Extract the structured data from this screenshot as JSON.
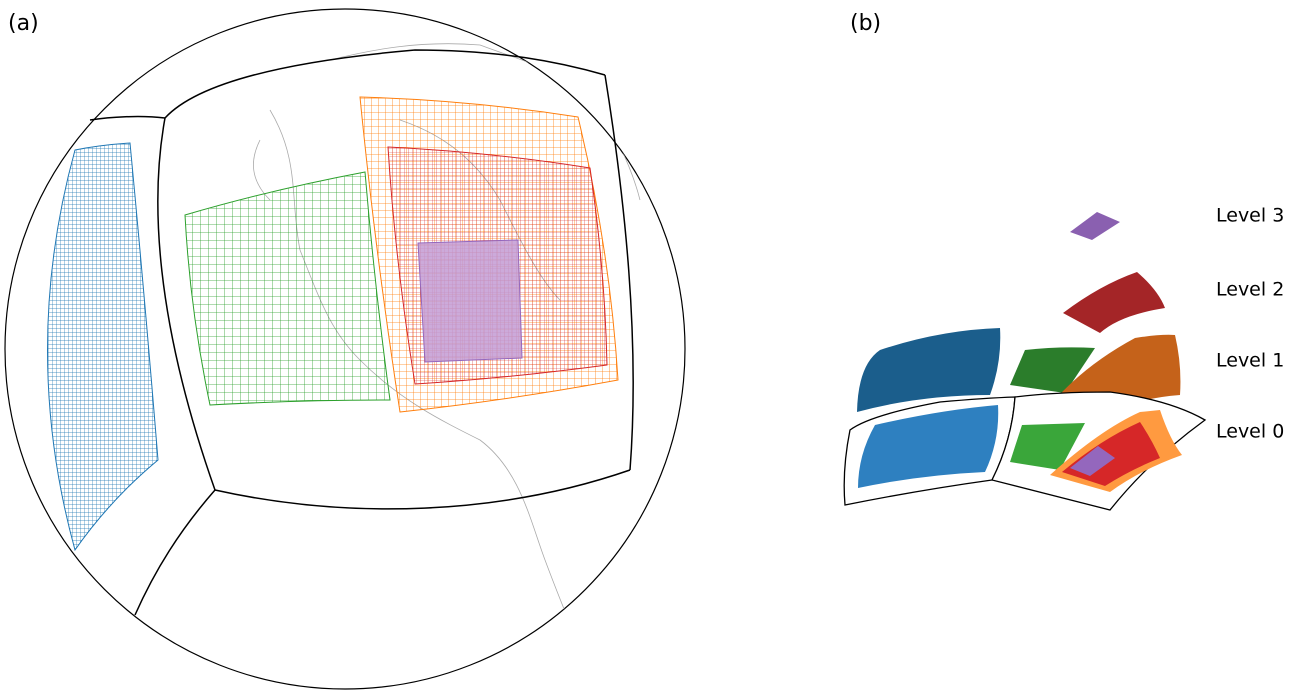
{
  "panel_a": {
    "label": "(a)"
  },
  "panel_b": {
    "label": "(b)",
    "levels": [
      "Level 3",
      "Level 2",
      "Level 1",
      "Level 0"
    ]
  }
}
